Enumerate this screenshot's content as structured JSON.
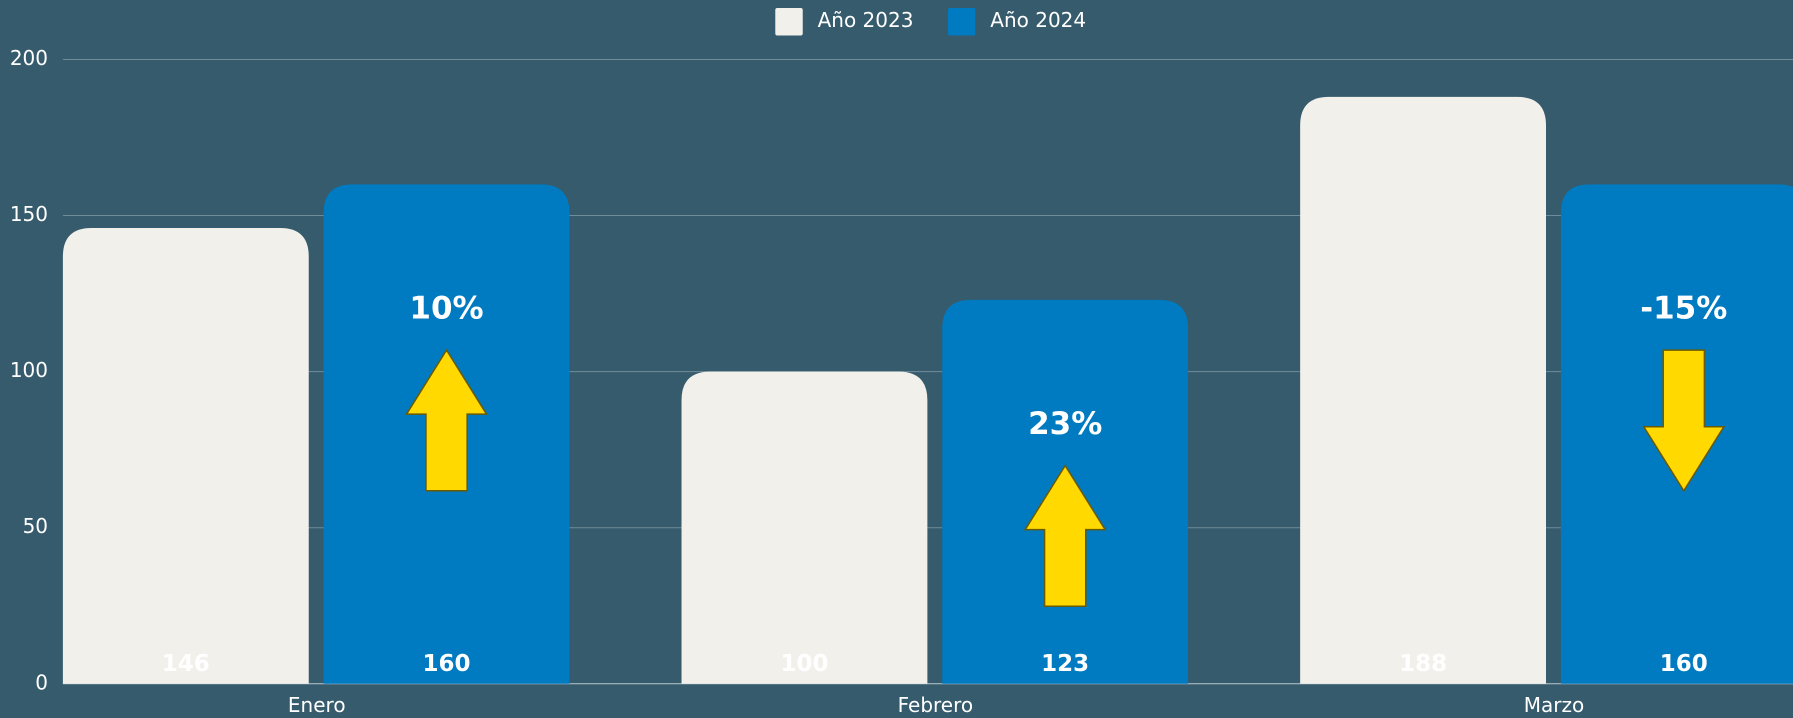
{
  "chart_data": {
    "type": "bar",
    "categories": [
      "Enero",
      "Febrero",
      "Marzo"
    ],
    "series": [
      {
        "name": "Año 2023",
        "color": "#f2f0eb",
        "values": [
          146,
          100,
          188
        ]
      },
      {
        "name": "Año 2024",
        "color": "#007ac0",
        "values": [
          160,
          123,
          160
        ]
      }
    ],
    "annotations": [
      "10%",
      "23%",
      "-15%"
    ],
    "annotation_color": "#ffd900",
    "ylim": [
      0,
      200
    ],
    "yticks": [
      0,
      50,
      100,
      150,
      200
    ],
    "grid": true,
    "legend": "top"
  }
}
